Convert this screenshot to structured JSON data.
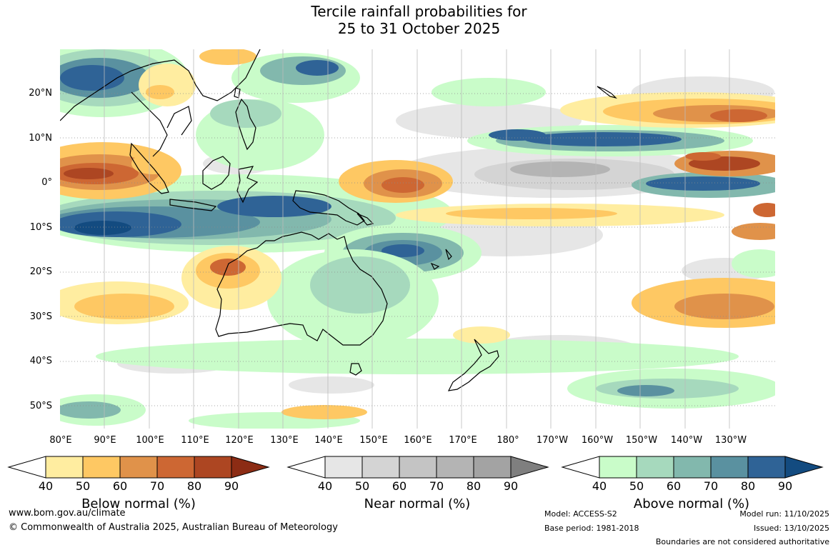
{
  "title_line1": "Tercile rainfall probabilities for",
  "title_line2": "25 to 31 October 2025",
  "lat_labels": [
    "20°N",
    "10°N",
    "0°",
    "10°S",
    "20°S",
    "30°S",
    "40°S",
    "50°S"
  ],
  "lon_labels": [
    "80°E",
    "90°E",
    "100°E",
    "110°E",
    "120°E",
    "130°E",
    "140°E",
    "150°E",
    "160°E",
    "170°E",
    "180°",
    "170°W",
    "160°W",
    "150°W",
    "140°W",
    "130°W"
  ],
  "legends": [
    {
      "title": "Below normal (%)",
      "ticks": [
        "40",
        "50",
        "60",
        "70",
        "80",
        "90"
      ],
      "colors": [
        "#ffeda0",
        "#fec863",
        "#e0924a",
        "#cd6733",
        "#ad4622",
        "#8c2c14"
      ]
    },
    {
      "title": "Near normal (%)",
      "ticks": [
        "40",
        "50",
        "60",
        "70",
        "80",
        "90"
      ],
      "colors": [
        "#e6e6e6",
        "#d4d4d4",
        "#c4c4c4",
        "#b4b4b4",
        "#a3a3a3",
        "#7f7f7f"
      ]
    },
    {
      "title": "Above normal (%)",
      "ticks": [
        "40",
        "50",
        "60",
        "70",
        "80",
        "90"
      ],
      "colors": [
        "#c9fcc9",
        "#a6d9bd",
        "#82b8ad",
        "#5a91a0",
        "#2f6396",
        "#134b80"
      ]
    }
  ],
  "footer": {
    "url": "www.bom.gov.au/climate",
    "copyright": "© Commonwealth of Australia 2025, Australian Bureau of Meteorology",
    "model": "Model: ACCESS-S2",
    "base_period": "Base period: 1981-2018",
    "model_run": "Model run: 11/10/2025",
    "issued": "Issued: 13/10/2025",
    "disclaimer": "Boundaries are not considered authoritative"
  }
}
